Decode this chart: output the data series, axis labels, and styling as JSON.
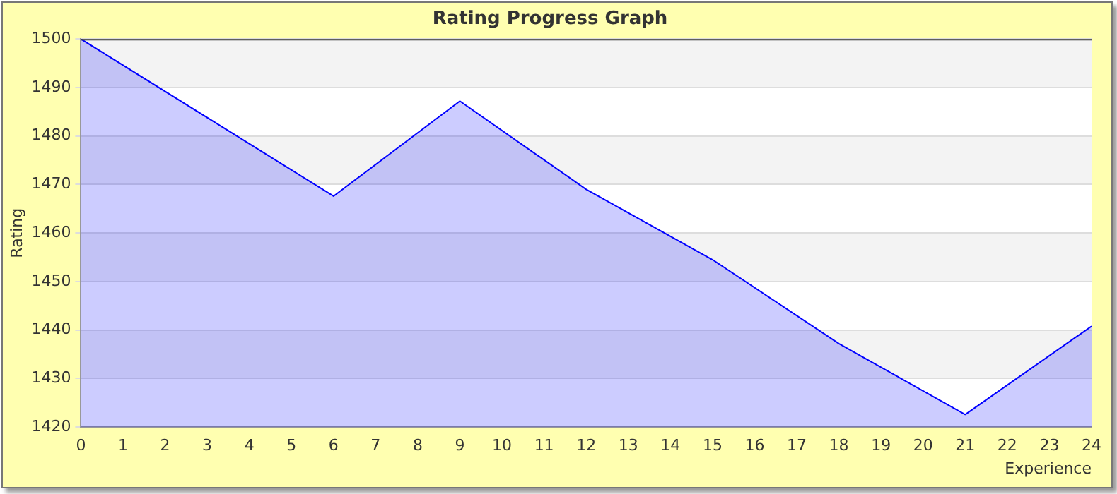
{
  "chart_data": {
    "type": "area",
    "title": "Rating Progress Graph",
    "xlabel": "Experience",
    "ylabel": "Rating",
    "x": [
      0,
      6,
      9,
      12,
      15,
      18,
      21,
      24
    ],
    "series": [
      {
        "color": "#0000ff",
        "values": [
          1500,
          1467.6,
          1487.2,
          1469,
          1454.5,
          1437.2,
          1422.6,
          1440.8
        ]
      }
    ],
    "xlim": [
      0,
      24
    ],
    "xticks": [
      0,
      1,
      2,
      3,
      4,
      5,
      6,
      7,
      8,
      9,
      10,
      11,
      12,
      13,
      14,
      15,
      16,
      17,
      18,
      19,
      20,
      21,
      22,
      23,
      24
    ],
    "ylim": [
      1420,
      1500
    ],
    "yticks": [
      1420,
      1430,
      1440,
      1450,
      1460,
      1470,
      1480,
      1490,
      1500
    ],
    "grid": "y",
    "legend": false,
    "marker": "none"
  }
}
